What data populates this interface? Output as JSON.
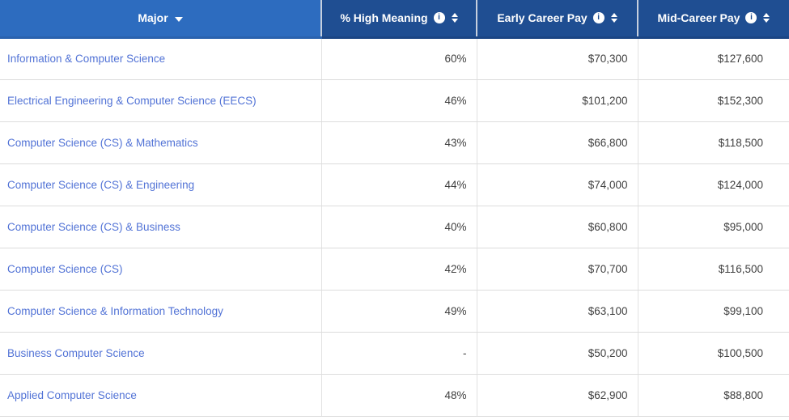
{
  "table": {
    "columns": [
      {
        "label": "Major",
        "sort_state": "descending",
        "has_info": false
      },
      {
        "label": "% High Meaning",
        "sort_state": "none",
        "has_info": true
      },
      {
        "label": "Early Career Pay",
        "sort_state": "none",
        "has_info": true
      },
      {
        "label": "Mid-Career Pay",
        "sort_state": "none",
        "has_info": true
      }
    ],
    "rows": [
      {
        "major": "Information & Computer Science",
        "high_meaning": "60%",
        "early_career_pay": "$70,300",
        "mid_career_pay": "$127,600"
      },
      {
        "major": "Electrical Engineering & Computer Science (EECS)",
        "high_meaning": "46%",
        "early_career_pay": "$101,200",
        "mid_career_pay": "$152,300"
      },
      {
        "major": "Computer Science (CS) & Mathematics",
        "high_meaning": "43%",
        "early_career_pay": "$66,800",
        "mid_career_pay": "$118,500"
      },
      {
        "major": "Computer Science (CS) & Engineering",
        "high_meaning": "44%",
        "early_career_pay": "$74,000",
        "mid_career_pay": "$124,000"
      },
      {
        "major": "Computer Science (CS) & Business",
        "high_meaning": "40%",
        "early_career_pay": "$60,800",
        "mid_career_pay": "$95,000"
      },
      {
        "major": "Computer Science (CS)",
        "high_meaning": "42%",
        "early_career_pay": "$70,700",
        "mid_career_pay": "$116,500"
      },
      {
        "major": "Computer Science & Information Technology",
        "high_meaning": "49%",
        "early_career_pay": "$63,100",
        "mid_career_pay": "$99,100"
      },
      {
        "major": "Business Computer Science",
        "high_meaning": "-",
        "early_career_pay": "$50,200",
        "mid_career_pay": "$100,500"
      },
      {
        "major": "Applied Computer Science",
        "high_meaning": "48%",
        "early_career_pay": "$62,900",
        "mid_career_pay": "$88,800"
      }
    ]
  },
  "icons": {
    "info_glyph": "i",
    "sort_active": "caret-down",
    "sort_inactive": "sort-up-down"
  },
  "colors": {
    "header_active_blue": "#2d6cbf",
    "header_dark_blue": "#1f4e92",
    "link_blue": "#5273d6",
    "body_text": "#3f3f3f",
    "row_border": "#dcdcdc"
  }
}
